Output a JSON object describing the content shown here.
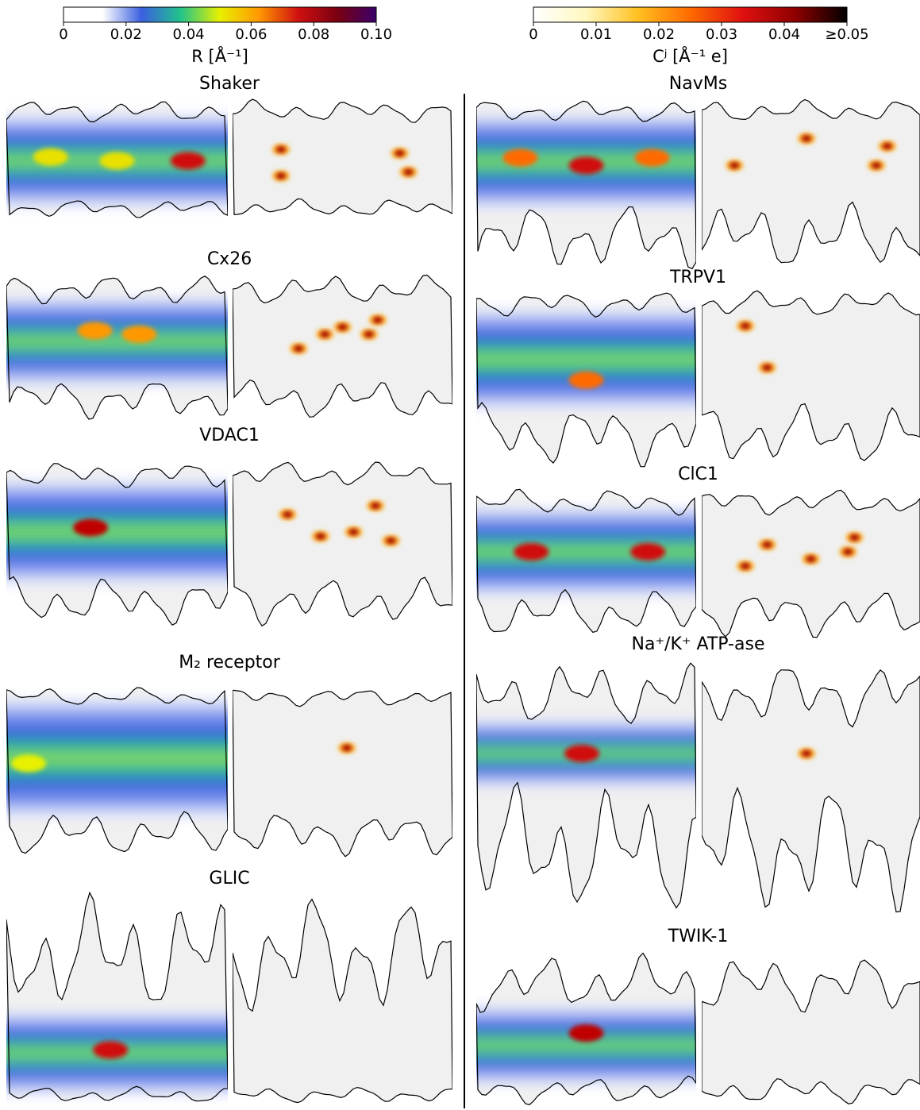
{
  "chart_data": [
    {
      "type": "colorbar",
      "label": "R [Å⁻¹]",
      "xlim": [
        0,
        0.1
      ],
      "xticks": [
        0,
        0.02,
        0.04,
        0.06,
        0.08,
        {
          "value": 0.1,
          "label": "0.10"
        }
      ],
      "colors": [
        "#ffffff",
        "#ffffff",
        "#3a5fe0",
        "#21c48a",
        "#e8f000",
        "#ff9800",
        "#d01010",
        "#7a0010",
        "#3a006a"
      ]
    },
    {
      "type": "colorbar",
      "label": "Cʲ [Å⁻¹ e]",
      "xlim": [
        0,
        0.05
      ],
      "xticks": [
        0,
        0.01,
        0.02,
        0.03,
        0.04,
        {
          "value": 0.05,
          "label": "≥0.05"
        }
      ],
      "colors": [
        "#ffffff",
        "#fff8c0",
        "#ffc020",
        "#ff6a00",
        "#e01010",
        "#900000",
        "#000000"
      ]
    }
  ],
  "panels": [
    {
      "title": "Shaker"
    },
    {
      "title": "Cx26"
    },
    {
      "title": "VDAC1"
    },
    {
      "title": "M₂ receptor"
    },
    {
      "title": "GLIC"
    },
    {
      "title": "NavMs"
    },
    {
      "title": "TRPV1"
    },
    {
      "title": "ClC1"
    },
    {
      "title": "Na⁺/K⁺ ATP-ase"
    },
    {
      "title": "TWIK-1"
    }
  ]
}
